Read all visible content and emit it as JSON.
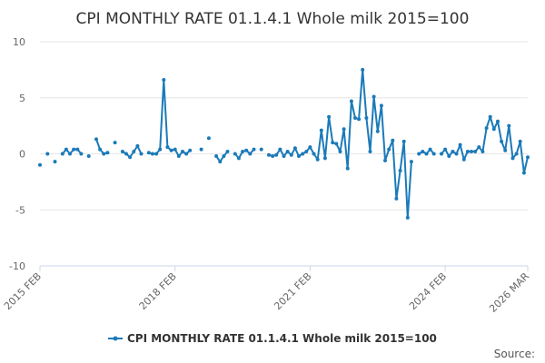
{
  "chart_data": {
    "type": "line",
    "title": "CPI MONTHLY RATE 01.1.4.1 Whole milk 2015=100",
    "xlabel": "",
    "ylabel": "",
    "ylim": [
      -10,
      10
    ],
    "yticks": [
      10,
      5,
      0,
      -5,
      -10
    ],
    "x_tick_labels": [
      "2015 FEB",
      "2018 FEB",
      "2021 FEB",
      "2024 FEB",
      "2026 MAR"
    ],
    "series": [
      {
        "name": "CPI MONTHLY RATE 01.1.4.1 Whole milk 2015=100",
        "color": "#1b7ab9",
        "values": [
          -1.0,
          null,
          0.0,
          null,
          -0.7,
          null,
          0.0,
          0.4,
          0.0,
          0.4,
          0.4,
          0.0,
          null,
          -0.2,
          null,
          1.3,
          0.4,
          0.0,
          0.1,
          null,
          1.0,
          null,
          0.2,
          0.0,
          -0.3,
          0.2,
          0.7,
          0.0,
          null,
          0.1,
          0.0,
          0.0,
          0.4,
          6.6,
          0.6,
          0.3,
          0.4,
          -0.2,
          0.2,
          0.0,
          0.3,
          null,
          null,
          0.4,
          null,
          1.4,
          null,
          -0.2,
          -0.7,
          -0.2,
          0.2,
          null,
          0.0,
          -0.4,
          0.2,
          0.3,
          0.0,
          0.4,
          null,
          0.4,
          null,
          -0.1,
          -0.2,
          -0.1,
          0.4,
          -0.2,
          0.2,
          -0.1,
          0.5,
          -0.2,
          0.0,
          0.2,
          0.6,
          0.0,
          -0.5,
          2.1,
          -0.4,
          3.3,
          1.0,
          0.9,
          0.2,
          2.2,
          -1.3,
          4.7,
          3.2,
          3.1,
          7.5,
          3.2,
          0.2,
          5.1,
          2.0,
          4.3,
          -0.6,
          0.4,
          1.2,
          -4.0,
          -1.5,
          1.1,
          -5.7,
          -0.7,
          null,
          0.0,
          0.2,
          0.0,
          0.4,
          0.0,
          null,
          0.0,
          0.4,
          -0.2,
          0.2,
          0.0,
          0.8,
          -0.5,
          0.2,
          0.2,
          0.2,
          0.6,
          0.2,
          2.3,
          3.3,
          2.2,
          2.9,
          1.1,
          0.3,
          2.5,
          -0.4,
          0.0,
          1.1,
          -1.7,
          -0.3
        ]
      }
    ],
    "legend": "bottom-center",
    "grid": true
  },
  "source_label": "Source:"
}
